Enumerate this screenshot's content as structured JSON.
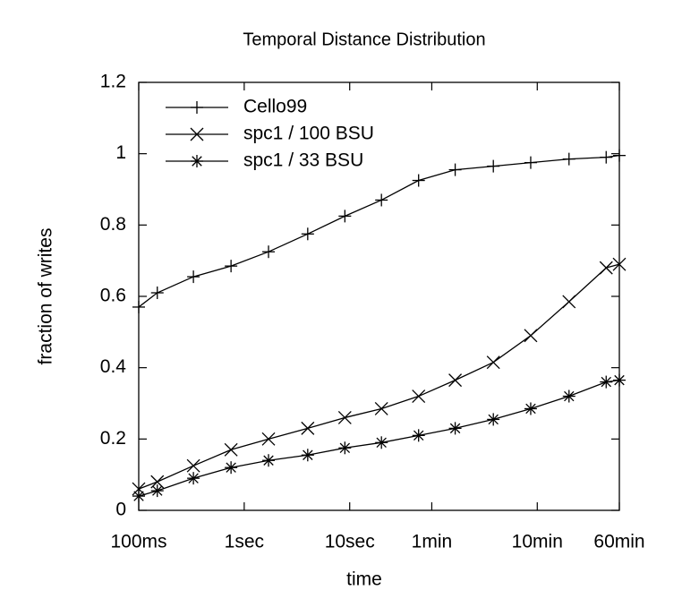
{
  "chart_data": {
    "type": "line",
    "title": "Temporal Distance Distribution",
    "x_label": "time",
    "y_label": "fraction of writes",
    "x": [
      0.1,
      0.15,
      0.33,
      0.75,
      1.7,
      4,
      9,
      20,
      45,
      100,
      230,
      520,
      1200,
      2700,
      3600
    ],
    "xscale": "log",
    "xlim": [
      0.1,
      3600
    ],
    "xticks": [
      {
        "value": 0.1,
        "label": "100ms"
      },
      {
        "value": 1,
        "label": "1sec"
      },
      {
        "value": 10,
        "label": "10sec"
      },
      {
        "value": 60,
        "label": "1min"
      },
      {
        "value": 600,
        "label": "10min"
      },
      {
        "value": 3600,
        "label": "60min"
      }
    ],
    "ylim": [
      0,
      1.2
    ],
    "yticks": [
      0,
      0.2,
      0.4,
      0.6,
      0.8,
      1,
      1.2
    ],
    "legend": "upper left",
    "series": [
      {
        "name": "Cello99",
        "color": "#000000",
        "marker": "plus",
        "values": [
          0.57,
          0.61,
          0.655,
          0.685,
          0.725,
          0.775,
          0.825,
          0.87,
          0.925,
          0.955,
          0.965,
          0.975,
          0.985,
          0.99,
          0.995
        ]
      },
      {
        "name": "spc1 / 100 BSU",
        "color": "#000000",
        "marker": "cross",
        "values": [
          0.06,
          0.08,
          0.125,
          0.17,
          0.2,
          0.23,
          0.26,
          0.285,
          0.32,
          0.365,
          0.415,
          0.49,
          0.585,
          0.68,
          0.69
        ]
      },
      {
        "name": "spc1 / 33 BSU",
        "color": "#000000",
        "marker": "star",
        "values": [
          0.04,
          0.055,
          0.09,
          0.12,
          0.14,
          0.155,
          0.175,
          0.19,
          0.21,
          0.23,
          0.255,
          0.285,
          0.32,
          0.36,
          0.365
        ]
      }
    ]
  }
}
